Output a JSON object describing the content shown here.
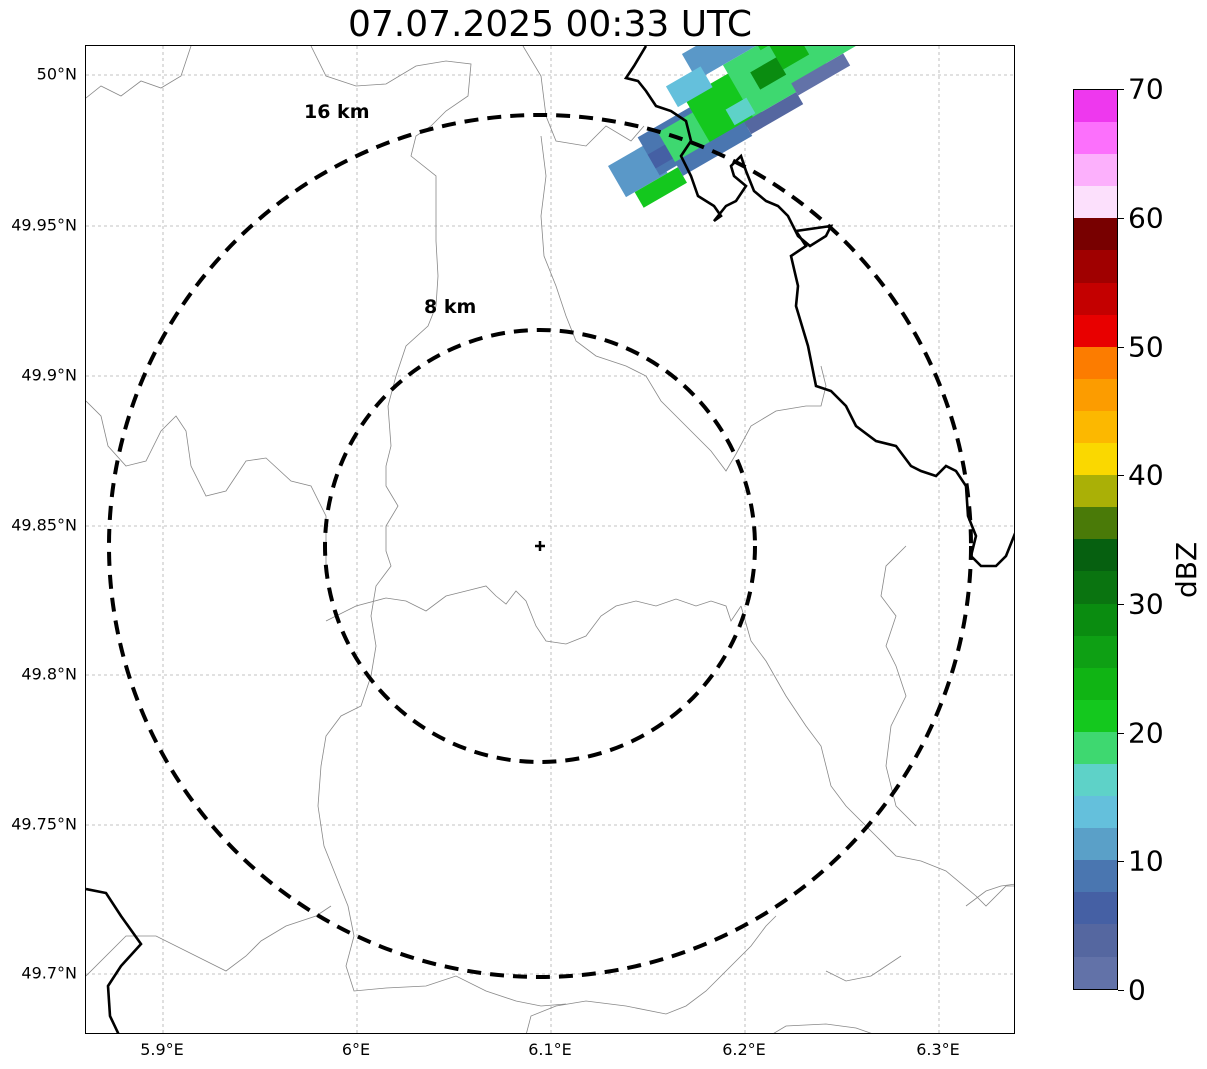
{
  "title": "07.07.2025 00:33 UTC",
  "axes": {
    "lat_labels": [
      "50°N",
      "49.95°N",
      "49.9°N",
      "49.85°N",
      "49.8°N",
      "49.75°N",
      "49.7°N"
    ],
    "lon_labels": [
      "5.9°E",
      "6°E",
      "6.1°E",
      "6.2°E",
      "6.3°E"
    ]
  },
  "rings": [
    {
      "label": "16 km",
      "radius_km": 16
    },
    {
      "label": "8 km",
      "radius_km": 8
    }
  ],
  "radar_site_icon": "plus-marker-icon",
  "colorbar": {
    "label": "dBZ",
    "ticks": [
      "0",
      "10",
      "20",
      "30",
      "40",
      "50",
      "60",
      "70"
    ],
    "colors": [
      "#6272a8",
      "#5567a0",
      "#4560a4",
      "#4a76b0",
      "#5aa0c8",
      "#64c0dc",
      "#5ed2c8",
      "#3ed870",
      "#14c81e",
      "#10b414",
      "#0ea014",
      "#0a8c10",
      "#0a7410",
      "#066010",
      "#4a7a08",
      "#aab006",
      "#fad800",
      "#fcb800",
      "#fc9c00",
      "#fc7c00",
      "#e80000",
      "#c40000",
      "#a00000",
      "#780000",
      "#fce0fc",
      "#fcb0fc",
      "#fc70fc",
      "#ee38ee"
    ]
  },
  "colors": {
    "ring": "#000000",
    "grid": "#b0b0b0",
    "border_line": "#000000",
    "admin_line": "#888888"
  }
}
